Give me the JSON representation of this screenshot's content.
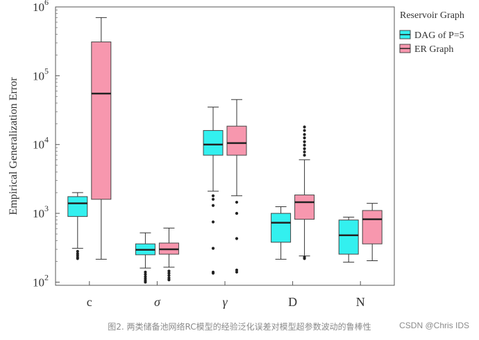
{
  "chart_data": {
    "type": "box",
    "ylabel": "Empirical  Generalization Error",
    "yscale": "log",
    "ylim": [
      90,
      1000000
    ],
    "y_ticks": [
      {
        "value": 100,
        "base": "10",
        "exp": "2"
      },
      {
        "value": 1000,
        "base": "10",
        "exp": "3"
      },
      {
        "value": 10000,
        "base": "10",
        "exp": "4"
      },
      {
        "value": 100000,
        "base": "10",
        "exp": "5"
      },
      {
        "value": 1000000,
        "base": "10",
        "exp": "6"
      }
    ],
    "categories": [
      "c",
      "σ",
      "γ",
      "D",
      "N"
    ],
    "legend": {
      "title": "Reservoir Graph",
      "position": "right-top",
      "entries": [
        "DAG of P=5",
        "ER Graph"
      ]
    },
    "series": [
      {
        "name": "DAG of P=5",
        "color": "#33f0ef",
        "boxes": [
          {
            "whislo": 310,
            "q1": 900,
            "med": 1400,
            "q3": 1750,
            "whishi": 2000,
            "fliers": [
              280,
              260,
              245,
              230,
              220
            ]
          },
          {
            "whislo": 160,
            "q1": 250,
            "med": 295,
            "q3": 360,
            "whishi": 520,
            "fliers": [
              140,
              130,
              120,
              112,
              105,
              100
            ]
          },
          {
            "whislo": 2100,
            "q1": 7000,
            "med": 10000,
            "q3": 16000,
            "whishi": 35000,
            "fliers": [
              1800,
              1600,
              1300,
              750,
              310,
              140,
              135
            ]
          },
          {
            "whislo": 215,
            "q1": 380,
            "med": 730,
            "q3": 1000,
            "whishi": 1250,
            "fliers": []
          },
          {
            "whislo": 195,
            "q1": 255,
            "med": 480,
            "q3": 800,
            "whishi": 880,
            "fliers": []
          }
        ]
      },
      {
        "name": "ER Graph",
        "color": "#f797ae",
        "boxes": [
          {
            "whislo": 215,
            "q1": 1600,
            "med": 55000,
            "q3": 310000,
            "whishi": 700000,
            "fliers": []
          },
          {
            "whislo": 165,
            "q1": 255,
            "med": 300,
            "q3": 370,
            "whishi": 610,
            "fliers": [
              145,
              135,
              125,
              115,
              108
            ]
          },
          {
            "whislo": 1800,
            "q1": 7000,
            "med": 10500,
            "q3": 18500,
            "whishi": 45000,
            "fliers": [
              1450,
              1000,
              430,
              150,
              140
            ]
          },
          {
            "whislo": 240,
            "q1": 820,
            "med": 1450,
            "q3": 1850,
            "whishi": 6000,
            "fliers": [
              18000,
              16000,
              14000,
              12500,
              11000,
              9800,
              8700,
              7800,
              7000,
              230,
              220
            ]
          },
          {
            "whislo": 205,
            "q1": 360,
            "med": 820,
            "q3": 1100,
            "whishi": 1400,
            "fliers": []
          }
        ]
      }
    ]
  },
  "caption": "图2. 两类储备池网络RC模型的经验泛化误差对模型超参数波动的鲁棒性",
  "watermark": "CSDN @Chris IDS"
}
